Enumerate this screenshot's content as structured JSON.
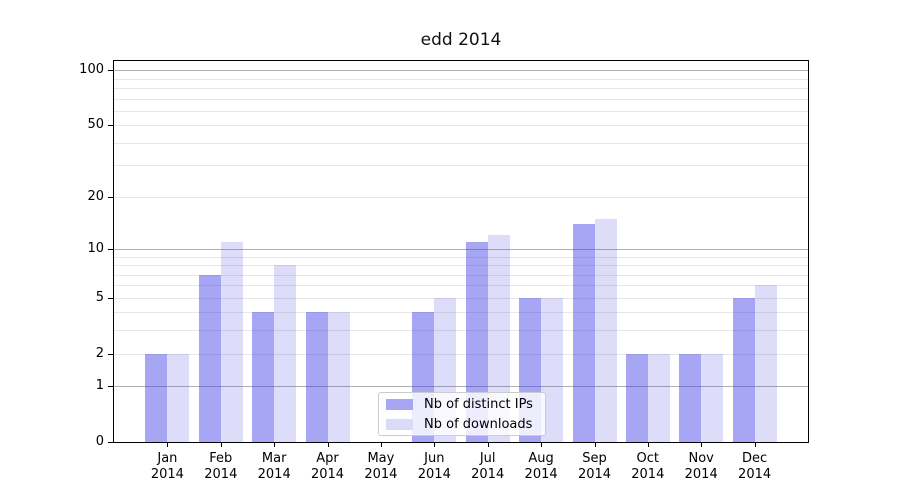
{
  "chart_data": {
    "type": "bar",
    "title": "edd 2014",
    "categories": [
      "Jan",
      "Feb",
      "Mar",
      "Apr",
      "May",
      "Jun",
      "Jul",
      "Aug",
      "Sep",
      "Oct",
      "Nov",
      "Dec"
    ],
    "year_label": "2014",
    "series": [
      {
        "name": "Nb of distinct IPs",
        "color": "#a6a6f4",
        "values": [
          2,
          7,
          4,
          4,
          0,
          4,
          11,
          5,
          14,
          2,
          2,
          5
        ]
      },
      {
        "name": "Nb of downloads",
        "color": "#dbdbf7",
        "values": [
          2,
          11,
          8,
          4,
          0,
          5,
          12,
          5,
          15,
          2,
          2,
          6
        ]
      }
    ],
    "y_axis": {
      "scale": "log1p",
      "tick_labels": [
        "100",
        "50",
        "20",
        "10",
        "5",
        "2",
        "1",
        "0"
      ],
      "tick_values": [
        100,
        50,
        20,
        10,
        5,
        2,
        1,
        0
      ],
      "major_gridlines": [
        1,
        10,
        100
      ],
      "minor_gridlines": [
        2,
        3,
        4,
        5,
        6,
        7,
        8,
        9,
        20,
        30,
        40,
        50,
        60,
        70,
        80,
        90
      ],
      "ylim": [
        0,
        115
      ]
    },
    "legend": {
      "position": "lower-center",
      "labels": [
        "Nb of distinct IPs",
        "Nb of downloads"
      ]
    },
    "colors": {
      "bar_dark_fill": "rgba(60,60,230,0.46)",
      "bar_light_fill": "rgba(70,70,220,0.185)",
      "major_grid": "#b0b0b0",
      "minor_grid": "#e7e7e7",
      "frame": "#000000",
      "background": "#ffffff"
    }
  }
}
